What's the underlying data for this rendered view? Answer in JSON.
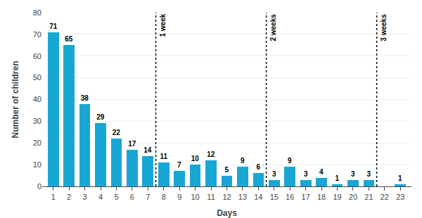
{
  "chart_data": {
    "type": "bar",
    "x": [
      1,
      2,
      3,
      4,
      5,
      6,
      7,
      8,
      9,
      10,
      11,
      12,
      13,
      14,
      15,
      16,
      17,
      18,
      19,
      20,
      21,
      22,
      23
    ],
    "values": [
      71,
      65,
      38,
      29,
      22,
      17,
      14,
      11,
      7,
      10,
      12,
      5,
      9,
      6,
      3,
      9,
      3,
      4,
      1,
      3,
      3,
      0,
      1
    ],
    "value_labels": [
      "71",
      "65",
      "38",
      "29",
      "22",
      "17",
      "14",
      "11",
      "7",
      "10",
      "12",
      "5",
      "9",
      "6",
      "3",
      "9",
      "3",
      "4",
      "1",
      "3",
      "3",
      null,
      "1"
    ],
    "data_labels": true,
    "color": "#18a7d4",
    "xlabel": "Days",
    "ylabel": "Number of children",
    "xlim": [
      0.3,
      23.7
    ],
    "xticks": [
      1,
      2,
      3,
      4,
      5,
      6,
      7,
      8,
      9,
      10,
      11,
      12,
      13,
      14,
      15,
      16,
      17,
      18,
      19,
      20,
      21,
      22,
      23
    ],
    "ylim": [
      0,
      80
    ],
    "yticks": [
      0,
      10,
      20,
      30,
      40,
      50,
      60,
      70,
      80
    ],
    "grid": true,
    "annotations": [
      {
        "x": 7.5,
        "text": "1 week"
      },
      {
        "x": 14.5,
        "text": "2 weeks"
      },
      {
        "x": 21.5,
        "text": "3 weeks"
      }
    ]
  }
}
